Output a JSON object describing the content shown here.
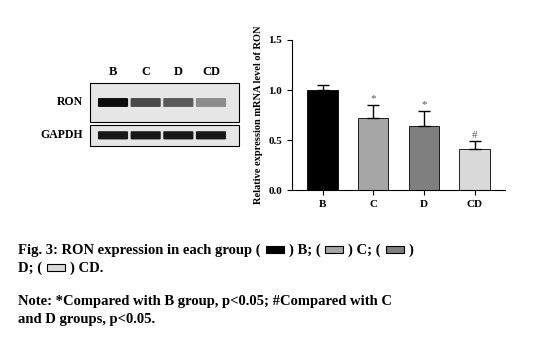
{
  "chart_data": {
    "type": "bar",
    "categories": [
      "B",
      "C",
      "D",
      "CD"
    ],
    "values": [
      1.0,
      0.72,
      0.64,
      0.41
    ],
    "errors": [
      0.05,
      0.13,
      0.15,
      0.08
    ],
    "colors": [
      "#000000",
      "#a6a6a6",
      "#7f7f7f",
      "#d9d9d9"
    ],
    "significance": [
      null,
      "*",
      "*",
      "#"
    ],
    "y_label": "Relative expression mRNA level of RON",
    "ylim": [
      0,
      1.5
    ],
    "yticks": [
      {
        "value": 0,
        "label": "0.0"
      },
      {
        "value": 0.5,
        "label": "0.5"
      },
      {
        "value": 1.0,
        "label": "1.0"
      },
      {
        "value": 1.5,
        "label": "1.5"
      }
    ]
  },
  "blot": {
    "lanes": [
      "B",
      "C",
      "D",
      "CD"
    ],
    "rows": [
      "RON",
      "GAPDH"
    ]
  },
  "caption": {
    "lines": [
      [
        "Fig. 3: RON expression in each group (",
        ") B; (",
        ") C; (",
        ")"
      ],
      [
        "D; (",
        ") CD."
      ]
    ],
    "note": [
      "Note: *Compared with B group, p<0.05; #Compared with C",
      "and D groups, p<0.05."
    ]
  }
}
